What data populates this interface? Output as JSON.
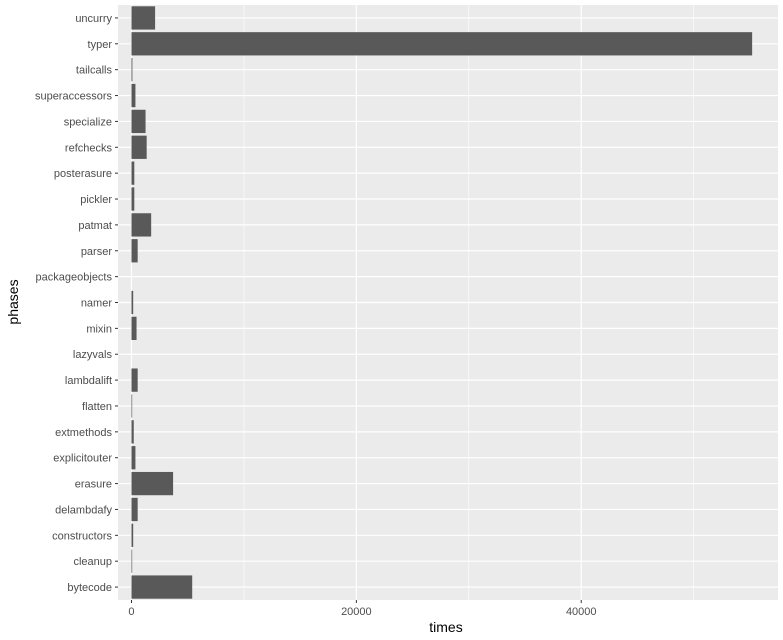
{
  "chart_data": {
    "type": "bar",
    "orientation": "horizontal",
    "xlabel": "times",
    "ylabel": "phases",
    "xlim": [
      -1200,
      57500
    ],
    "x_ticks": [
      0,
      20000,
      40000
    ],
    "x_tick_labels": [
      "0",
      "20000",
      "40000"
    ],
    "x_minor_ticks": [
      10000,
      30000,
      50000
    ],
    "grid": true,
    "colors": {
      "panel": "#ebebeb",
      "grid": "#ffffff",
      "bar": "#595959"
    },
    "categories": [
      "uncurry",
      "typer",
      "tailcalls",
      "superaccessors",
      "specialize",
      "refchecks",
      "posterasure",
      "pickler",
      "patmat",
      "parser",
      "packageobjects",
      "namer",
      "mixin",
      "lazyvals",
      "lambdalift",
      "flatten",
      "extmethods",
      "explicitouter",
      "erasure",
      "delambdafy",
      "constructors",
      "cleanup",
      "bytecode"
    ],
    "values": [
      2100,
      55200,
      80,
      350,
      1250,
      1350,
      250,
      250,
      1750,
      550,
      0,
      150,
      450,
      0,
      550,
      60,
      200,
      350,
      3700,
      550,
      150,
      60,
      5400
    ]
  }
}
